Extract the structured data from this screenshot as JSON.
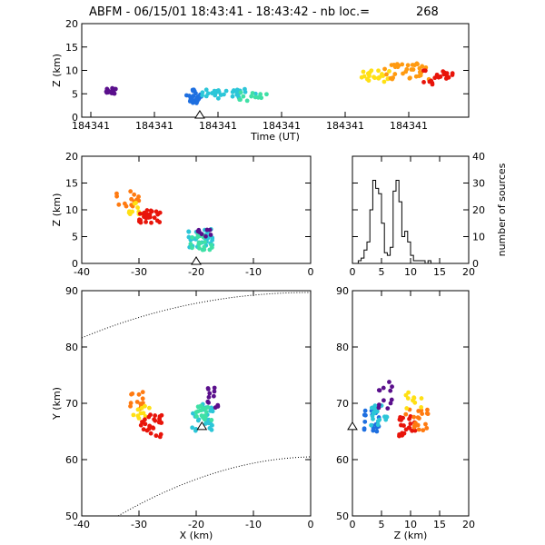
{
  "title": "ABFM - 06/15/01 18:43:41 - 18:43:42 - nb loc.=",
  "count": "268",
  "chart_data": [
    {
      "id": "time-height",
      "type": "scatter",
      "xlabel": "Time (UT)",
      "ylabel": "Z (km)",
      "x_tick_labels": [
        "184341",
        "184341",
        "184341",
        "184341",
        "184341",
        "184341"
      ],
      "xlim": [
        0,
        1
      ],
      "ylim": [
        0,
        20
      ],
      "y_ticks": [
        0,
        5,
        10,
        15,
        20
      ],
      "marker": {
        "x": 0.305,
        "y": 0
      },
      "clusters": [
        {
          "x0": 0.06,
          "x1": 0.09,
          "z0": 4.8,
          "z1": 6.2,
          "color": "#5a0f8c",
          "n": 18
        },
        {
          "x0": 0.27,
          "x1": 0.31,
          "z0": 3.0,
          "z1": 6.0,
          "color": "#1e6fe0",
          "n": 25
        },
        {
          "x0": 0.31,
          "x1": 0.45,
          "z0": 4.0,
          "z1": 6.0,
          "color": "#2cc6d8",
          "n": 30
        },
        {
          "x0": 0.4,
          "x1": 0.48,
          "z0": 3.5,
          "z1": 5.5,
          "color": "#3fe0a6",
          "n": 12
        },
        {
          "x0": 0.72,
          "x1": 0.8,
          "z0": 7.5,
          "z1": 10.0,
          "color": "#ffe014",
          "n": 22
        },
        {
          "x0": 0.78,
          "x1": 0.9,
          "z0": 8.0,
          "z1": 11.5,
          "color": "#ff9a10",
          "n": 35
        },
        {
          "x0": 0.88,
          "x1": 0.96,
          "z0": 7.0,
          "z1": 10.0,
          "color": "#e8140a",
          "n": 20
        }
      ]
    },
    {
      "id": "x-z",
      "type": "scatter",
      "xlabel": "",
      "ylabel": "Z (km)",
      "xlim": [
        -40,
        0
      ],
      "ylim": [
        0,
        20
      ],
      "x_ticks": [
        -40,
        -30,
        -20,
        -10,
        0
      ],
      "y_ticks": [
        0,
        5,
        10,
        15,
        20
      ],
      "marker": {
        "x": -20,
        "y": 0
      },
      "clusters": [
        {
          "x0": -34,
          "x1": -30,
          "z0": 10.5,
          "z1": 13.5,
          "color": "#ff7a10",
          "n": 15
        },
        {
          "x0": -32,
          "x1": -29,
          "z0": 9.0,
          "z1": 11.5,
          "color": "#ffe014",
          "n": 10
        },
        {
          "x0": -30,
          "x1": -26,
          "z0": 7.5,
          "z1": 10.0,
          "color": "#e8140a",
          "n": 25
        },
        {
          "x0": -22,
          "x1": -17,
          "z0": 3.0,
          "z1": 6.5,
          "color": "#2cc6d8",
          "n": 30
        },
        {
          "x0": -21,
          "x1": -17,
          "z0": 2.5,
          "z1": 5.5,
          "color": "#3fe0a6",
          "n": 20
        },
        {
          "x0": -20,
          "x1": -17,
          "z0": 5.0,
          "z1": 6.5,
          "color": "#5a0f8c",
          "n": 8
        }
      ]
    },
    {
      "id": "histogram",
      "type": "bar",
      "xlabel": "",
      "ylabel": "number of sources",
      "xlim": [
        0,
        20
      ],
      "ylim": [
        0,
        40
      ],
      "x_ticks": [
        0,
        5,
        10,
        15,
        20
      ],
      "y_ticks": [
        0,
        10,
        20,
        30,
        40
      ],
      "bin_edges": [
        1.0,
        1.5,
        2.0,
        2.5,
        3.0,
        3.5,
        4.0,
        4.5,
        5.0,
        5.5,
        6.0,
        6.5,
        7.0,
        7.5,
        8.0,
        8.5,
        9.0,
        9.5,
        10.0,
        10.5,
        11.0,
        11.5,
        12.0,
        12.5,
        13.0,
        13.5,
        14.0,
        14.5,
        15.0
      ],
      "values": [
        1,
        2,
        5,
        8,
        20,
        31,
        28,
        26,
        15,
        4,
        3,
        6,
        27,
        31,
        23,
        10,
        12,
        8,
        3,
        1,
        1,
        1,
        1,
        0,
        1,
        0,
        0,
        0
      ]
    },
    {
      "id": "x-y",
      "type": "scatter",
      "xlabel": "X (km)",
      "ylabel": "Y (km)",
      "xlim": [
        -40,
        0
      ],
      "ylim": [
        50,
        90
      ],
      "x_ticks": [
        -40,
        -30,
        -20,
        -10,
        0
      ],
      "y_ticks": [
        50,
        60,
        70,
        80,
        90
      ],
      "marker": {
        "x": -19,
        "y": 65.5
      },
      "clusters": [
        {
          "x0": -32,
          "x1": -29,
          "z0": 69,
          "z1": 72,
          "color": "#ff7a10",
          "n": 12
        },
        {
          "x0": -31,
          "x1": -28,
          "z0": 67,
          "z1": 70,
          "color": "#ffe014",
          "n": 10
        },
        {
          "x0": -30,
          "x1": -26,
          "z0": 64,
          "z1": 68,
          "color": "#e8140a",
          "n": 28
        },
        {
          "x0": -21,
          "x1": -17,
          "z0": 65,
          "z1": 70,
          "color": "#2cc6d8",
          "n": 28
        },
        {
          "x0": -20,
          "x1": -17,
          "z0": 67,
          "z1": 70,
          "color": "#3fe0a6",
          "n": 18
        },
        {
          "x0": -18,
          "x1": -16,
          "z0": 69,
          "z1": 73,
          "color": "#5a0f8c",
          "n": 12
        }
      ]
    },
    {
      "id": "z-y",
      "type": "scatter",
      "xlabel": "Z (km)",
      "ylabel": "",
      "xlim": [
        0,
        20
      ],
      "ylim": [
        50,
        90
      ],
      "x_ticks": [
        0,
        5,
        10,
        15,
        20
      ],
      "y_ticks": [
        50,
        60,
        70,
        80,
        90
      ],
      "marker": {
        "x": 0,
        "y": 65.5
      },
      "clusters": [
        {
          "x0": 2,
          "x1": 5,
          "z0": 65,
          "z1": 70,
          "color": "#1e6fe0",
          "n": 20
        },
        {
          "x0": 3,
          "x1": 6,
          "z0": 66,
          "z1": 70,
          "color": "#2cc6d8",
          "n": 18
        },
        {
          "x0": 4,
          "x1": 7,
          "z0": 69,
          "z1": 74,
          "color": "#5a0f8c",
          "n": 12
        },
        {
          "x0": 8,
          "x1": 11,
          "z0": 64,
          "z1": 68,
          "color": "#e8140a",
          "n": 20
        },
        {
          "x0": 9,
          "x1": 13,
          "z0": 65,
          "z1": 69,
          "color": "#ff7a10",
          "n": 20
        },
        {
          "x0": 9,
          "x1": 12,
          "z0": 69,
          "z1": 72,
          "color": "#ffe014",
          "n": 10
        }
      ]
    }
  ]
}
